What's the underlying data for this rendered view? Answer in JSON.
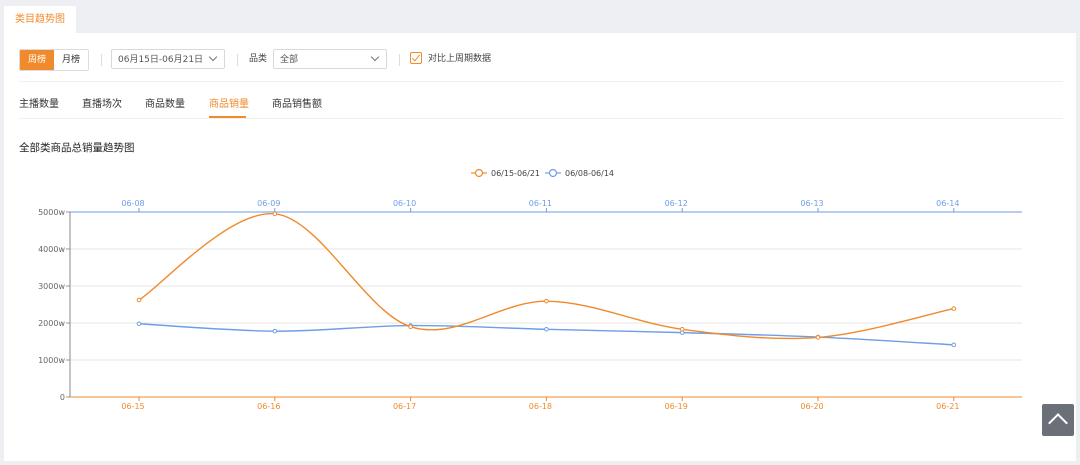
{
  "page_tab": "类目趋势图",
  "filters": {
    "period_tabs": [
      "周榜",
      "月榜"
    ],
    "date_range": "06月15日-06月21日",
    "category_label": "品类",
    "category_value": "全部",
    "compare_label": "对比上周期数据",
    "compare_checked": true
  },
  "metric_tabs": [
    "主播数量",
    "直播场次",
    "商品数量",
    "商品销量",
    "商品销售额"
  ],
  "active_metric": "商品销量",
  "chart_title": "全部类商品总销量趋势图",
  "colors": {
    "accent": "#f08a2c",
    "series_current": "#f08a2c",
    "series_previous": "#6d9ee8"
  },
  "chart_data": {
    "type": "line",
    "title": "全部类商品总销量趋势图",
    "x_bottom": [
      "06-15",
      "06-16",
      "06-17",
      "06-18",
      "06-19",
      "06-20",
      "06-21"
    ],
    "x_top": [
      "06-08",
      "06-09",
      "06-10",
      "06-11",
      "06-12",
      "06-13",
      "06-14"
    ],
    "y_ticks": [
      "0",
      "1000w",
      "2000w",
      "3000w",
      "4000w",
      "5000w"
    ],
    "ylim": [
      0,
      5000
    ],
    "unit": "w",
    "grid": true,
    "legend_position": "top-center",
    "series": [
      {
        "name": "06/15-06/21",
        "axis": "bottom",
        "values": [
          2620,
          4950,
          1900,
          2590,
          1830,
          1610,
          2390
        ]
      },
      {
        "name": "06/08-06/14",
        "axis": "top",
        "values": [
          1980,
          1780,
          1930,
          1830,
          1740,
          1620,
          1410
        ]
      }
    ]
  }
}
